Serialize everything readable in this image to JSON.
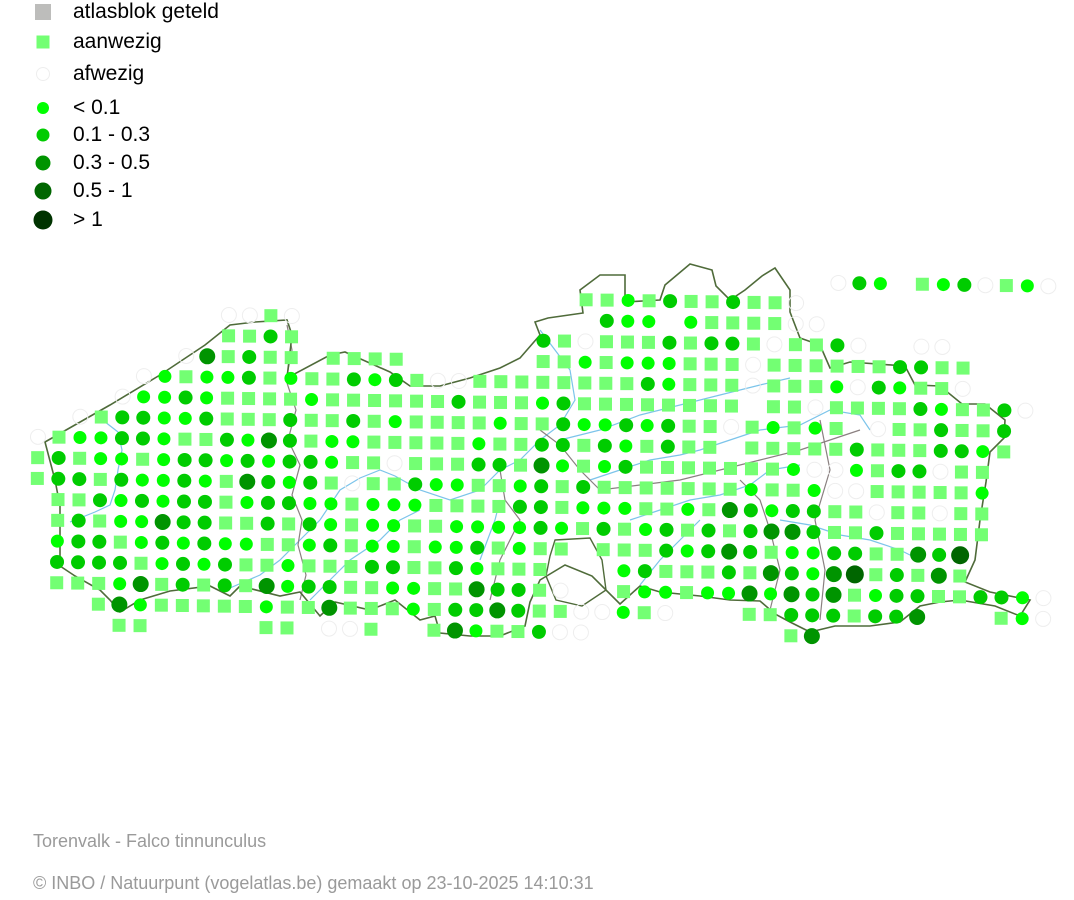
{
  "legend": [
    {
      "label": "atlasblok geteld",
      "symbol": "square",
      "color": "#bdbdbb"
    },
    {
      "label": "aanwezig",
      "symbol": "square",
      "color": "#73ff73"
    },
    {
      "label": "afwezig",
      "symbol": "circle-outline",
      "color": "#eeeeee"
    },
    {
      "label": "< 0.1",
      "symbol": "circle",
      "color": "#00ff00"
    },
    {
      "label": "0.1 - 0.3",
      "symbol": "circle",
      "color": "#00cc00"
    },
    {
      "label": "0.3 - 0.5",
      "symbol": "circle",
      "color": "#009400"
    },
    {
      "label": "0.5 - 1",
      "symbol": "circle",
      "color": "#006600"
    },
    {
      "label": "> 1",
      "symbol": "circle",
      "color": "#003300"
    }
  ],
  "map": {
    "outline_color": "#4f6b3a",
    "province_border_color": "#8a8080",
    "river_color": "#7cc4ea",
    "grid_rows": [
      "......................................o21.s12os1o............",
      "..........................ss1s2ss2sso............",
      ".........ooso..............211.1ssssoo............",
      ".........ss2s...........2sosss2s22soss2o..oo......",
      ".......o3s2ss.ssss......ss1s111sssossssss22ss......",
      ".....o1s112s1ss212soossssssss21sssosss1o21sso....",
      "....o1121ssss1ssssss2sss12ssssssss.ssossss21ss2o..",
      "..os22112sss2ss2s1ssss1ss211212ssos1s1s.oss2ss2..",
      "os11221ss2132s11sssss1ss22s21s2ss.sssss2sss221s..",
      "s2s11s122121221ssosss22s31s12sssssss1oo1s22oss...",
      "s22s21121s3212soss211ss12s2sssssss1ss1oosssss1...",
      ".ss212122s12211s111ssss22s111ss1s32122ssossoss...",
      ".s2s11322ss2s21s11ss111121s2s12s2s2332ss2sssss...",
      ".122s121211ss12s11s112s1ss.sss21232s1122ss324....",
      ".2222s1212ss1sss22ss21sss...12sss2s32134s2s3s....",
      ".sss13s2s2s3122ss11ss322so..s11s1131323s122ss221o",
      "...s31sssss1ss3sss1s2232ssoo1so...ss222s223...s1o",
      "....ss.....ss.oos..s31ss2oo.........s3............"
    ]
  },
  "footer": {
    "species": "Torenvalk - Falco tinnunculus",
    "credit": "© INBO / Natuurpunt (vogelatlas.be) gemaakt op 23-10-2025 14:10:31"
  }
}
